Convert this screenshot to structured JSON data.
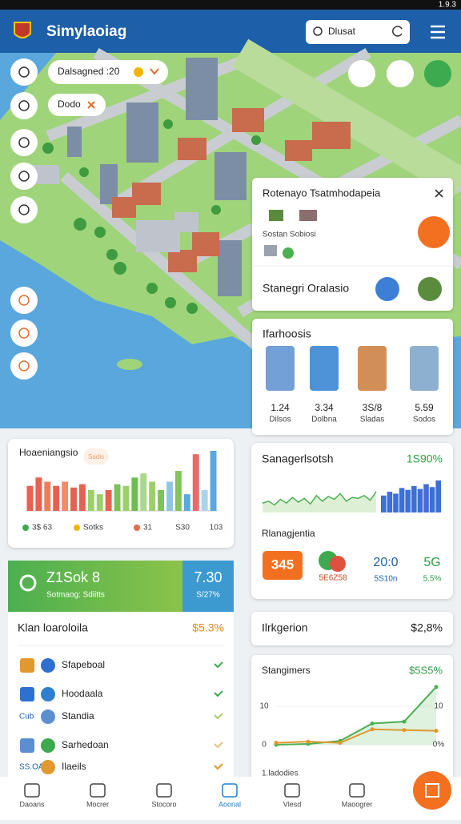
{
  "status": {
    "time": "1.9.3"
  },
  "header": {
    "title": "Simylaoiag",
    "search": "Dlusat"
  },
  "map": {
    "chips": [
      "Dalsagned :20",
      "Dodo"
    ]
  },
  "info_panel": {
    "title": "Rotenayo Tsatmhodapeia",
    "subtitle": "Sostan Sobiosi",
    "section": "Stanegri Oralasio"
  },
  "stats_panel": {
    "title": "Ifarhoosis",
    "items": [
      {
        "value": "1.24",
        "label": "Dilsos"
      },
      {
        "value": "3.34",
        "label": "Dolbna"
      },
      {
        "value": "3S/8",
        "label": "Sladas"
      },
      {
        "value": "5.59",
        "label": "Sodos"
      }
    ]
  },
  "bar_card": {
    "title": "Hoaeniangsio",
    "badge": "Sadis",
    "values": [
      30,
      40,
      35,
      30,
      35,
      28,
      32,
      25,
      20,
      25,
      32,
      30,
      40,
      45,
      35,
      25,
      35,
      48,
      20,
      68,
      25,
      72
    ],
    "colors": [
      "#e8604f",
      "#e8604f",
      "#ef7c5c",
      "#e8604f",
      "#f28b6b",
      "#e8604f",
      "#e8604f",
      "#9ccf6a",
      "#9ccf6a",
      "#e8604f",
      "#7cc35a",
      "#9ccf6a",
      "#6dbd4f",
      "#a8d88a",
      "#9ccf6a",
      "#7cc35a",
      "#8fc6e8",
      "#86c45a",
      "#5aa8e0",
      "#e86a6a",
      "#a8d4ec",
      "#5aa8e0"
    ],
    "legend": [
      "3$ 63",
      "Sotks",
      "31",
      "S30",
      "103"
    ]
  },
  "trend_card": {
    "title": "Sanagerlsotsh",
    "value": "1S90%",
    "line_values": [
      10,
      12,
      8,
      14,
      10,
      16,
      11,
      15,
      9,
      18,
      12,
      17,
      14,
      20,
      12,
      16,
      15,
      18,
      13,
      22
    ],
    "bar_values": [
      18,
      22,
      20,
      26,
      24,
      28,
      25,
      30,
      27,
      34
    ]
  },
  "metrics_card": {
    "title": "Rlanagjentia",
    "badge": "345",
    "pie_label": "5E6Z58",
    "items": [
      {
        "value": "20:0",
        "label": "5S10n"
      },
      {
        "value": "5G",
        "label": "5.5%"
      }
    ]
  },
  "score_card": {
    "value": "Z1Sok 8",
    "label": "Sotmaog: Sdiitts",
    "right_value": "7.30",
    "right_label": "S/27%"
  },
  "list_card": {
    "title": "Klan loaroloila",
    "value": "$5.3%",
    "items": [
      {
        "label": "Sfapeboal"
      },
      {
        "label": "Hoodaala"
      },
      {
        "prefix": "Cub",
        "label": "Standia"
      },
      {
        "label": "Sarhedoan"
      },
      {
        "prefix": "SS.OA",
        "label": "Ilaeils"
      }
    ]
  },
  "region_card": {
    "title": "Ilrkgerion",
    "value": "$2,8%"
  },
  "line_card": {
    "title": "Stangimers",
    "value": "$5S5%",
    "ylim": [
      0,
      16
    ],
    "yticks": [
      0,
      10
    ],
    "right_labels": [
      "10",
      "0%"
    ],
    "footer": "1.ladodies",
    "series": [
      {
        "color": "#4caf50",
        "values": [
          0,
          0.2,
          1,
          5.5,
          6,
          15
        ]
      },
      {
        "color": "#e0982f",
        "values": [
          0.5,
          0.8,
          0.5,
          4,
          3.8,
          3.6
        ]
      }
    ]
  },
  "nav": [
    "Daoans",
    "Mocrer",
    "Stocoro",
    "Aoonal",
    "Vlesd",
    "Maoogrer"
  ]
}
